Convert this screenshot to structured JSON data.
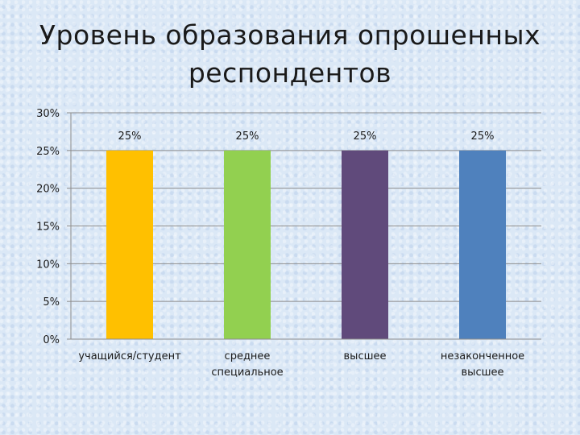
{
  "title_line1": "Уровень образования опрошенных",
  "title_line2": "респондентов",
  "chart_data": {
    "type": "bar",
    "categories": [
      [
        "учащийся/студент"
      ],
      [
        "среднее",
        "специальное"
      ],
      [
        "высшее"
      ],
      [
        "незаконченное",
        "высшее"
      ]
    ],
    "values": [
      25,
      25,
      25,
      25
    ],
    "data_labels": [
      "25%",
      "25%",
      "25%",
      "25%"
    ],
    "colors": [
      "#ffc000",
      "#92d050",
      "#604a7b",
      "#4f81bd"
    ],
    "ylim": [
      0,
      30
    ],
    "yticks": [
      0,
      5,
      10,
      15,
      20,
      25,
      30
    ],
    "ytick_labels": [
      "0%",
      "5%",
      "10%",
      "15%",
      "20%",
      "25%",
      "30%"
    ],
    "grid": true,
    "title": "Уровень образования опрошенных респондентов",
    "xlabel": "",
    "ylabel": ""
  }
}
